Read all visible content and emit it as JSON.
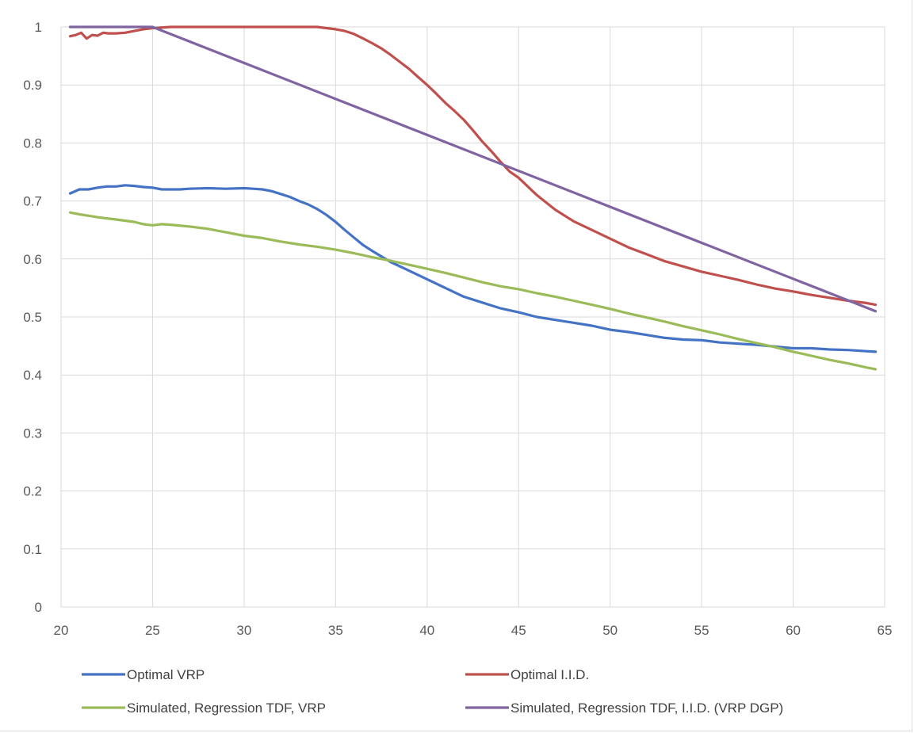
{
  "chart_data": {
    "type": "line",
    "title": "",
    "xlabel": "",
    "ylabel": "",
    "xlim": [
      20,
      65
    ],
    "ylim": [
      0,
      1
    ],
    "xticks": [
      "20",
      "25",
      "30",
      "35",
      "40",
      "45",
      "50",
      "55",
      "60",
      "65"
    ],
    "yticks": [
      "0",
      "0.1",
      "0.2",
      "0.3",
      "0.4",
      "0.5",
      "0.6",
      "0.7",
      "0.8",
      "0.9",
      "1"
    ],
    "grid": true,
    "legend": "bottom",
    "series": [
      {
        "name": "Optimal VRP",
        "color": "#4472c4",
        "x": [
          20.5,
          21,
          21.5,
          22,
          22.5,
          23,
          23.5,
          24,
          24.5,
          25,
          25.5,
          26,
          26.5,
          27,
          28,
          29,
          30,
          30.5,
          31,
          31.5,
          32,
          32.5,
          33,
          33.5,
          34,
          34.5,
          35,
          35.5,
          36,
          36.5,
          37,
          38,
          39,
          40,
          41,
          42,
          43,
          44,
          45,
          46,
          47,
          48,
          49,
          50,
          51,
          52,
          53,
          54,
          55,
          56,
          57,
          58,
          59,
          60,
          61,
          62,
          63,
          64,
          64.5
        ],
        "y": [
          0.713,
          0.72,
          0.72,
          0.723,
          0.725,
          0.725,
          0.727,
          0.726,
          0.724,
          0.723,
          0.72,
          0.72,
          0.72,
          0.721,
          0.722,
          0.721,
          0.722,
          0.721,
          0.72,
          0.717,
          0.712,
          0.707,
          0.7,
          0.694,
          0.686,
          0.676,
          0.664,
          0.65,
          0.637,
          0.624,
          0.614,
          0.595,
          0.58,
          0.565,
          0.55,
          0.535,
          0.525,
          0.515,
          0.508,
          0.5,
          0.495,
          0.49,
          0.485,
          0.478,
          0.474,
          0.469,
          0.464,
          0.461,
          0.46,
          0.456,
          0.454,
          0.452,
          0.449,
          0.446,
          0.446,
          0.444,
          0.443,
          0.441,
          0.44
        ]
      },
      {
        "name": "Optimal I.I.D.",
        "color": "#c0504d",
        "x": [
          20.5,
          20.8,
          21.1,
          21.4,
          21.7,
          22,
          22.3,
          22.6,
          23,
          23.5,
          24,
          24.5,
          25,
          26,
          27,
          28,
          29,
          30,
          31,
          32,
          33,
          34,
          34.5,
          35,
          35.5,
          36,
          36.5,
          37,
          37.5,
          38,
          38.5,
          39,
          39.5,
          40,
          40.5,
          41,
          41.5,
          42,
          42.5,
          43,
          43.5,
          44,
          44.5,
          45,
          46,
          47,
          48,
          49,
          50,
          51,
          52,
          53,
          54,
          55,
          56,
          57,
          58,
          59,
          60,
          61,
          62,
          63,
          64,
          64.5
        ],
        "y": [
          0.984,
          0.986,
          0.99,
          0.98,
          0.986,
          0.985,
          0.99,
          0.989,
          0.989,
          0.99,
          0.993,
          0.996,
          0.998,
          1.0,
          1.0,
          1.0,
          1.0,
          1.0,
          1.0,
          1.0,
          1.0,
          1.0,
          0.998,
          0.996,
          0.993,
          0.988,
          0.98,
          0.972,
          0.963,
          0.952,
          0.94,
          0.928,
          0.914,
          0.9,
          0.885,
          0.869,
          0.855,
          0.84,
          0.822,
          0.803,
          0.786,
          0.768,
          0.751,
          0.74,
          0.71,
          0.685,
          0.665,
          0.65,
          0.635,
          0.62,
          0.608,
          0.596,
          0.587,
          0.578,
          0.571,
          0.564,
          0.556,
          0.549,
          0.544,
          0.538,
          0.533,
          0.528,
          0.524,
          0.521
        ]
      },
      {
        "name": "Simulated, Regression TDF, VRP",
        "color": "#9bbb59",
        "x": [
          20.5,
          21,
          22,
          23,
          24,
          24.5,
          25,
          25.5,
          26,
          27,
          28,
          29,
          30,
          31,
          32,
          33,
          34,
          35,
          36,
          37,
          38,
          39,
          40,
          41,
          42,
          43,
          44,
          45,
          46,
          47,
          48,
          49,
          50,
          51,
          52,
          53,
          54,
          55,
          56,
          57,
          58,
          59,
          60,
          61,
          62,
          63,
          64,
          64.5
        ],
        "y": [
          0.68,
          0.677,
          0.672,
          0.668,
          0.664,
          0.66,
          0.658,
          0.66,
          0.659,
          0.656,
          0.652,
          0.646,
          0.64,
          0.636,
          0.63,
          0.625,
          0.621,
          0.616,
          0.61,
          0.603,
          0.597,
          0.59,
          0.583,
          0.576,
          0.568,
          0.56,
          0.553,
          0.548,
          0.541,
          0.535,
          0.528,
          0.521,
          0.514,
          0.506,
          0.499,
          0.492,
          0.484,
          0.477,
          0.47,
          0.462,
          0.455,
          0.448,
          0.44,
          0.433,
          0.426,
          0.42,
          0.413,
          0.41
        ]
      },
      {
        "name": "Simulated, Regression TDF, I.I.D. (VRP DGP)",
        "color": "#8064a2",
        "x": [
          20.5,
          25,
          64.5
        ],
        "y": [
          1.0,
          1.0,
          0.51
        ]
      }
    ]
  }
}
